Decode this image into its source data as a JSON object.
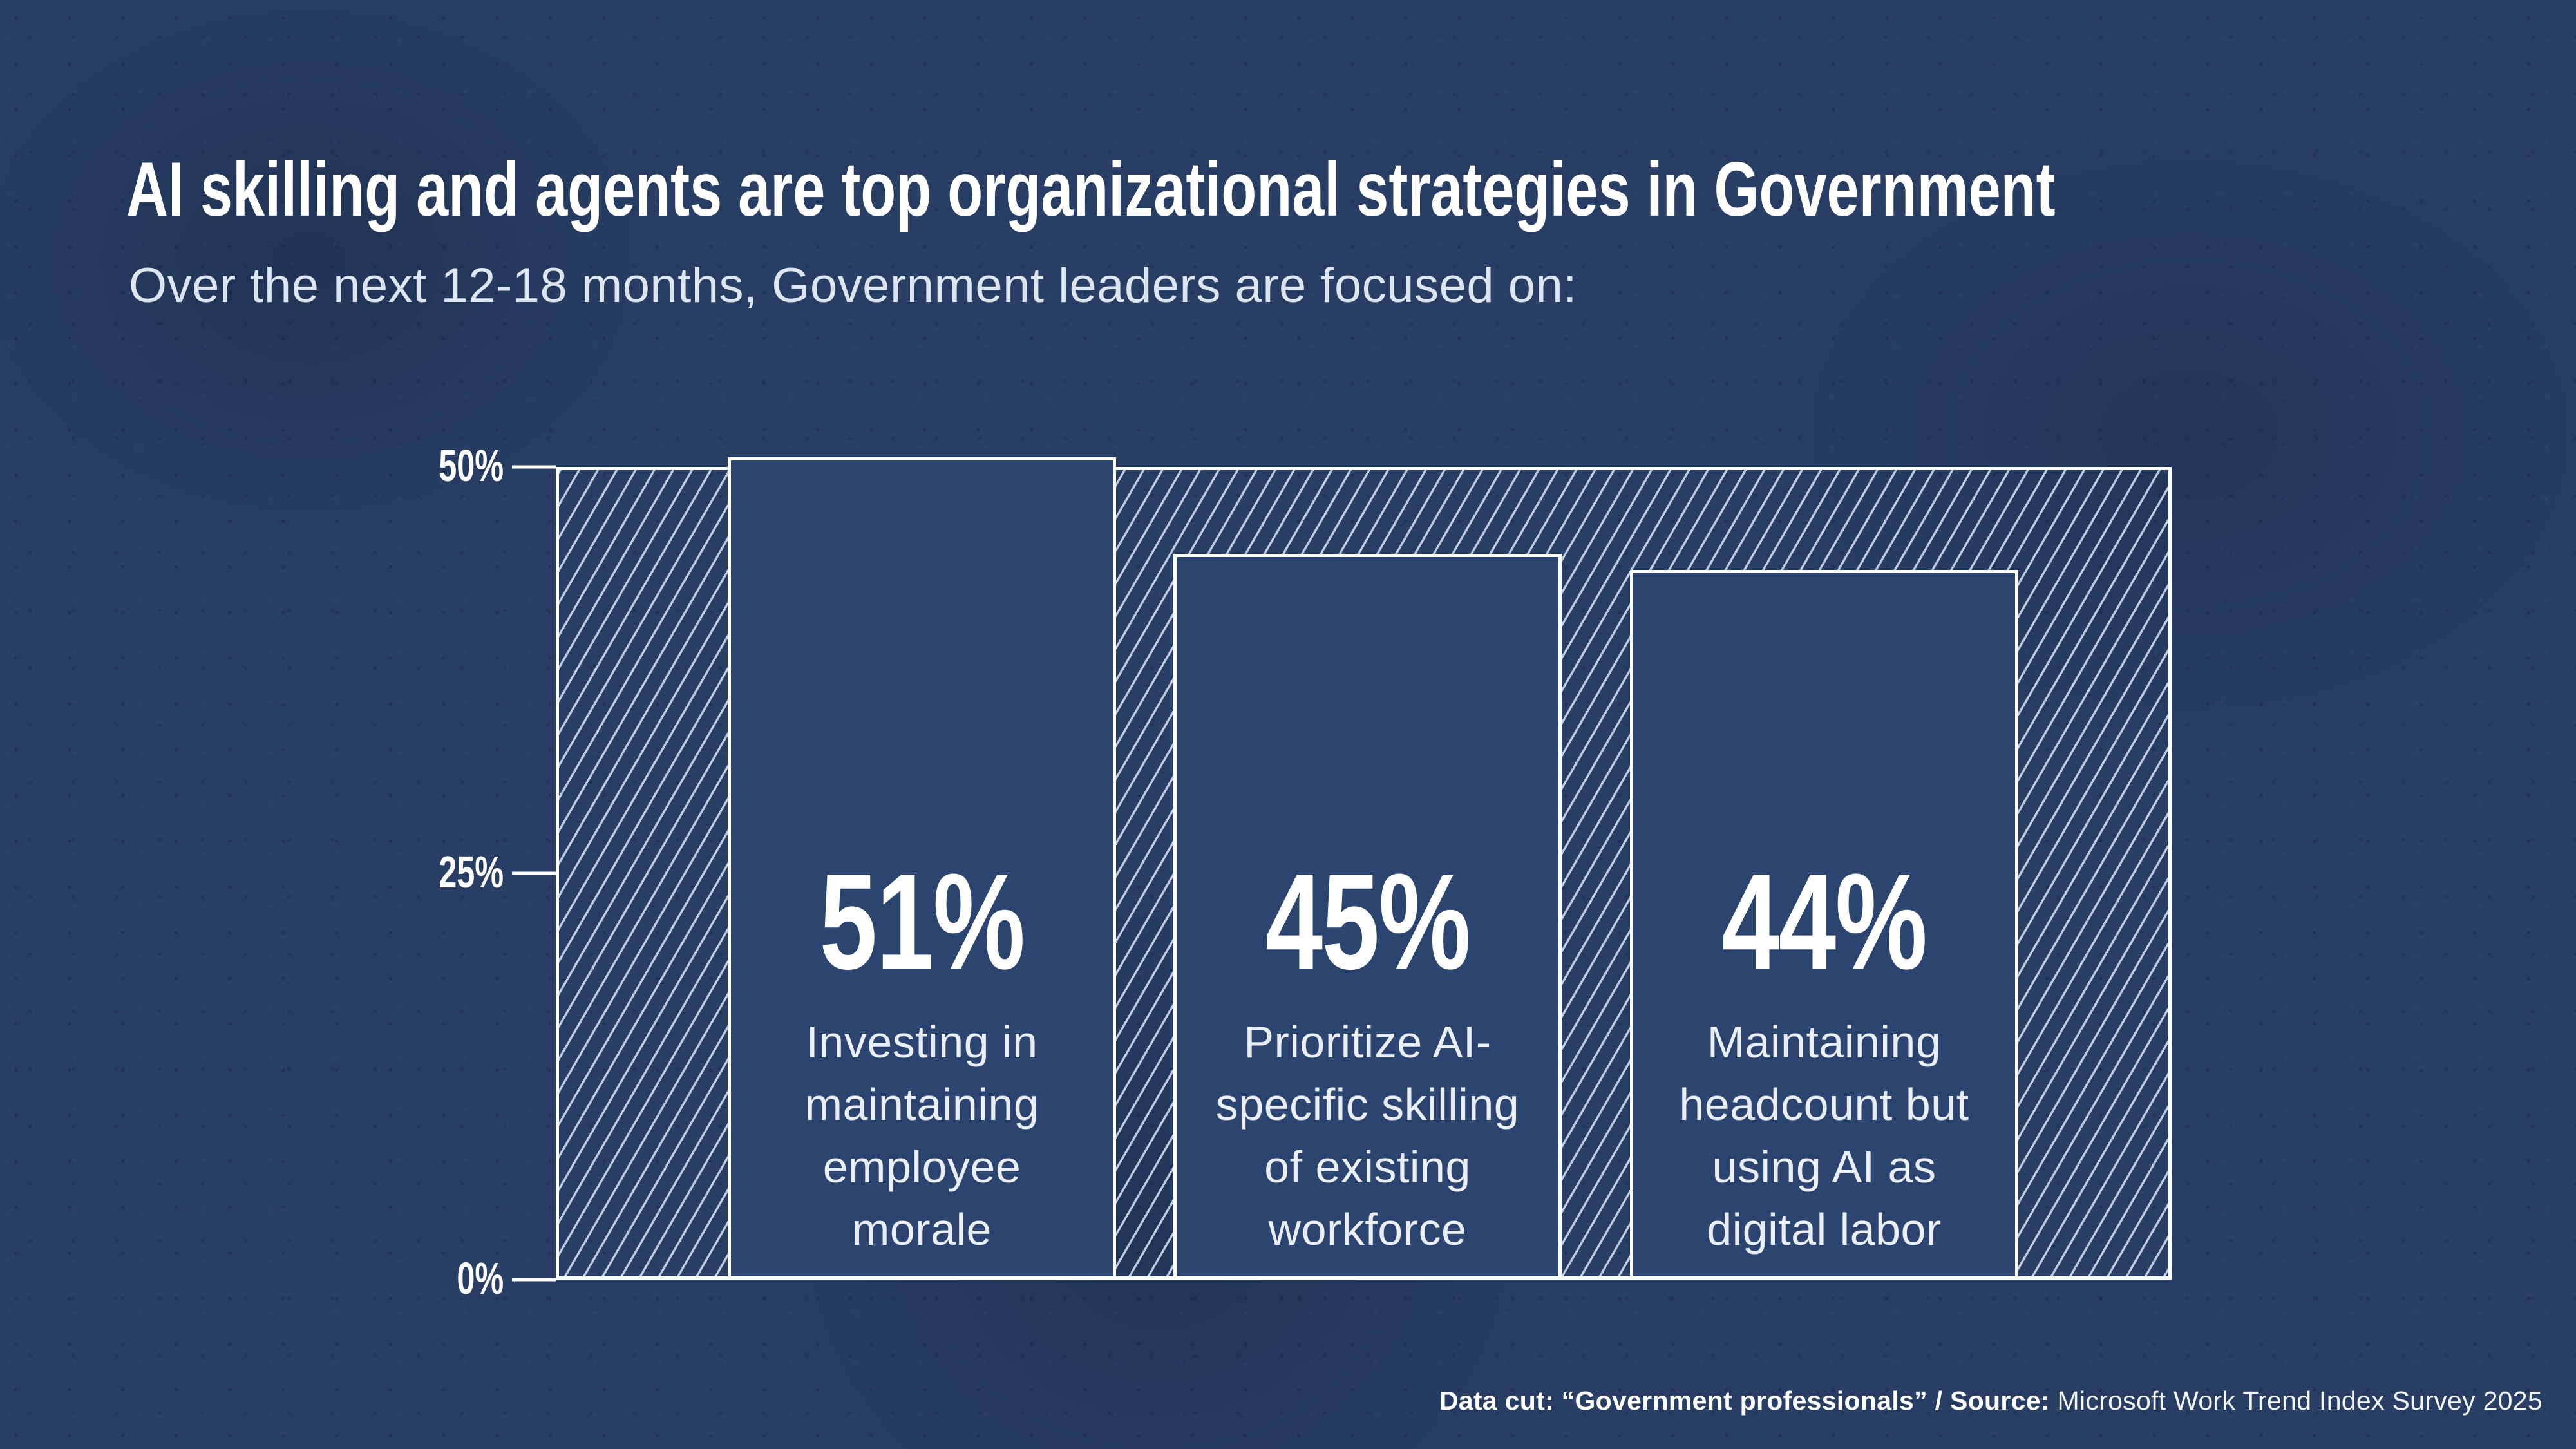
{
  "page": {
    "title": "AI skilling and agents are top organizational strategies in Government",
    "subtitle": "Over the next 12-18 months, Government leaders are focused on:"
  },
  "chart_data": {
    "type": "bar",
    "title": "AI skilling and agents are top organizational strategies in Government",
    "subtitle": "Over the next 12-18 months, Government leaders are focused on:",
    "categories": [
      "Investing in\nmaintaining\nemployee\nmorale",
      "Prioritize AI-\nspecific skilling\nof existing\nworkforce",
      "Maintaining\nheadcount but\nusing AI as\ndigital labor"
    ],
    "values": [
      51,
      45,
      44
    ],
    "value_labels": [
      "51%",
      "45%",
      "44%"
    ],
    "ylim": [
      0,
      50
    ],
    "yticks": [
      {
        "label": "50%",
        "value": 50
      },
      {
        "label": "25%",
        "value": 25
      },
      {
        "label": "0%",
        "value": 0
      }
    ],
    "grid": false,
    "legend": null,
    "xlabel": "",
    "ylabel": ""
  },
  "footer": {
    "bold": "Data cut: “Government professionals” / Source: ",
    "regular": "Microsoft Work Trend Index Survey 2025"
  },
  "colors": {
    "background": "#283e64",
    "bar_fill": "#2b4470",
    "hatch_stripe": "#ccd8ea",
    "text": "#ffffff",
    "border": "#ffffff"
  }
}
